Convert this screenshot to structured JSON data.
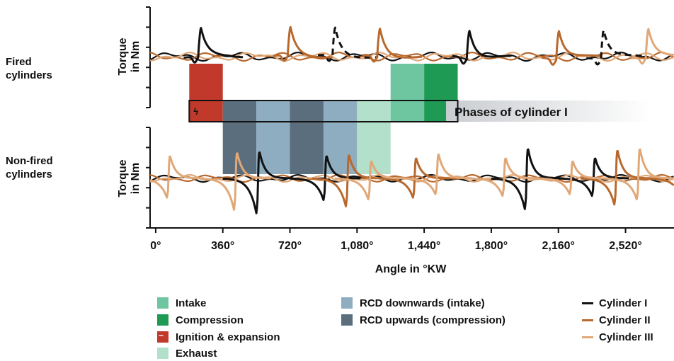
{
  "row_labels": {
    "fired": [
      "Fired",
      "cylinders"
    ],
    "nonfired": [
      "Non-fired",
      "cylinders"
    ]
  },
  "chart_data": {
    "type": "line",
    "xlabel": "Angle in °KW",
    "ylabel": [
      "Torque",
      "in Nm"
    ],
    "xlim": [
      -30,
      2780
    ],
    "xticks": [
      {
        "value": 0,
        "label": "0°"
      },
      {
        "value": 360,
        "label": "360°"
      },
      {
        "value": 720,
        "label": "720°"
      },
      {
        "value": 1080,
        "label": "1,080°"
      },
      {
        "value": 1440,
        "label": "1,440°"
      },
      {
        "value": 1800,
        "label": "1,800°"
      },
      {
        "value": 2160,
        "label": "2,160°"
      },
      {
        "value": 2520,
        "label": "2,520°"
      }
    ],
    "phases_label": "Phases of cylinder I",
    "phase_types": {
      "intake": {
        "label": "Intake",
        "color": "#6ec6a1"
      },
      "compression": {
        "label": "Compression",
        "color": "#1e9a55"
      },
      "ignition": {
        "label": "Ignition & expansion",
        "color": "#c0392b"
      },
      "exhaust": {
        "label": "Exhaust",
        "color": "#b3e0cb"
      },
      "rcd_down": {
        "label": "RCD downwards (intake)",
        "color": "#8eadc0"
      },
      "rcd_up": {
        "label": "RCD upwards (compression)",
        "color": "#5b6e7e"
      }
    },
    "phase_bands": [
      {
        "type": "ignition",
        "start": 180,
        "end": 360,
        "panels": [
          "fired",
          "strip"
        ]
      },
      {
        "type": "rcd_up",
        "start": 360,
        "end": 540,
        "panels": [
          "strip",
          "nonfired"
        ]
      },
      {
        "type": "rcd_down",
        "start": 540,
        "end": 720,
        "panels": [
          "strip",
          "nonfired"
        ]
      },
      {
        "type": "rcd_up",
        "start": 720,
        "end": 900,
        "panels": [
          "strip",
          "nonfired"
        ]
      },
      {
        "type": "rcd_down",
        "start": 900,
        "end": 1080,
        "panels": [
          "strip",
          "nonfired"
        ]
      },
      {
        "type": "exhaust",
        "start": 1080,
        "end": 1260,
        "panels": [
          "strip",
          "nonfired"
        ]
      },
      {
        "type": "intake",
        "start": 1260,
        "end": 1440,
        "panels": [
          "strip",
          "fired"
        ]
      },
      {
        "type": "compression",
        "start": 1440,
        "end": 1620,
        "panels": [
          "strip",
          "fired"
        ]
      }
    ],
    "series": [
      {
        "name": "Cylinder I",
        "color": "#111111"
      },
      {
        "name": "Cylinder II",
        "color": "#b8692e"
      },
      {
        "name": "Cylinder III",
        "color": "#e0a878"
      }
    ],
    "fired_pulses": [
      {
        "series": 0,
        "x": 240,
        "dip": 1,
        "dashed": false
      },
      {
        "series": 1,
        "x": 720,
        "dip": 0,
        "dashed": false
      },
      {
        "series": 0,
        "x": 960,
        "dip": 1,
        "dashed": true
      },
      {
        "series": 1,
        "x": 1200,
        "dip": 0,
        "dashed": false
      },
      {
        "series": 0,
        "x": 1680,
        "dip": 1,
        "dashed": false
      },
      {
        "series": 1,
        "x": 2160,
        "dip": 0,
        "dashed": false
      },
      {
        "series": 0,
        "x": 2400,
        "dip": 1,
        "dashed": true
      },
      {
        "series": 2,
        "x": 2640,
        "dip": 0,
        "dashed": false
      }
    ],
    "nonfired_pulses": [
      {
        "series": 0,
        "x": 540,
        "amp": 0.85,
        "neg": 1.0
      },
      {
        "series": 0,
        "x": 900,
        "amp": 0.72,
        "neg": 0.62
      },
      {
        "series": 0,
        "x": 1980,
        "amp": 0.95,
        "neg": 0.88
      },
      {
        "series": 0,
        "x": 2340,
        "amp": 0.65,
        "neg": 0.5
      },
      {
        "series": 1,
        "x": 1020,
        "amp": 0.75,
        "neg": 0.8
      },
      {
        "series": 1,
        "x": 1380,
        "amp": 0.65,
        "neg": 0.55
      },
      {
        "series": 1,
        "x": 2460,
        "amp": 0.9,
        "neg": 0.75
      },
      {
        "series": 1,
        "x": 2820,
        "amp": 0.7,
        "neg": 0.6
      },
      {
        "series": 2,
        "x": 60,
        "amp": 0.72,
        "neg": 0.55
      },
      {
        "series": 2,
        "x": 420,
        "amp": 0.82,
        "neg": 0.9
      },
      {
        "series": 2,
        "x": 1140,
        "amp": 0.55,
        "neg": 0.6
      },
      {
        "series": 2,
        "x": 1500,
        "amp": 0.78,
        "neg": 0.45
      },
      {
        "series": 2,
        "x": 1860,
        "amp": 0.65,
        "neg": 0.5
      },
      {
        "series": 2,
        "x": 2220,
        "amp": 0.55,
        "neg": 0.45
      },
      {
        "series": 2,
        "x": 2580,
        "amp": 0.95,
        "neg": 0.6
      }
    ]
  }
}
